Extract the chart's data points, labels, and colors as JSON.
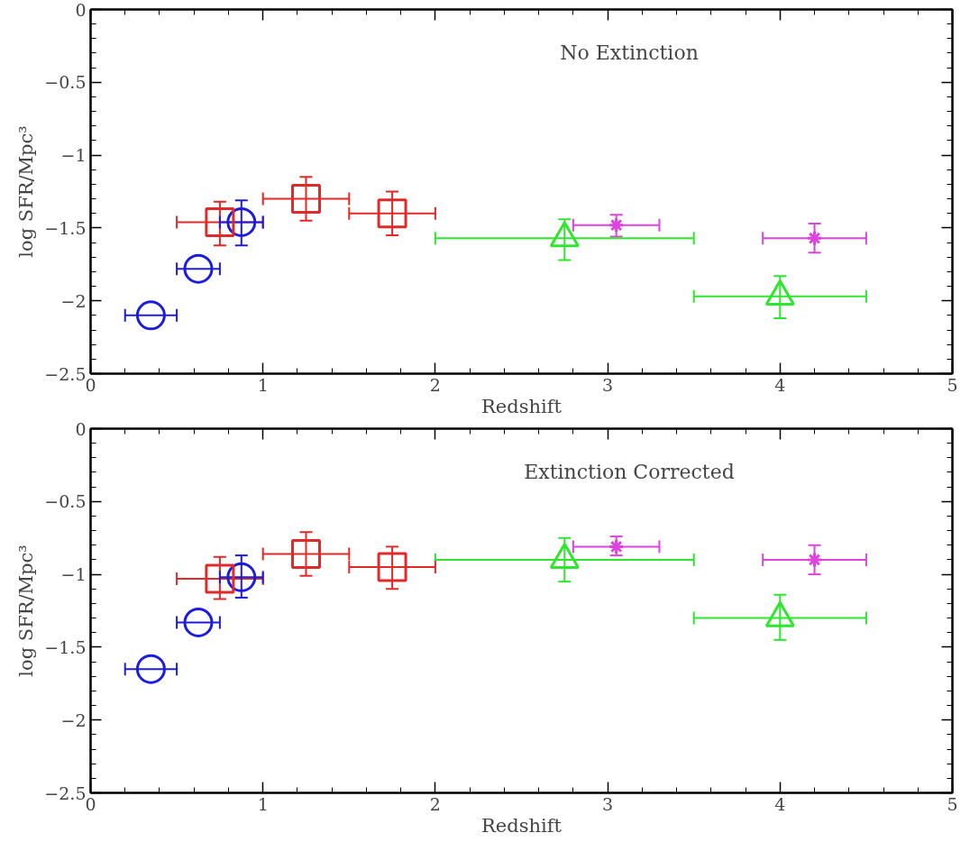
{
  "chart_data": [
    {
      "type": "scatter",
      "title": "No Extinction",
      "xlabel": "Redshift",
      "ylabel": "log SFR/Mpc³",
      "xlim": [
        0,
        5
      ],
      "ylim": [
        -2.5,
        0
      ],
      "xticks": [
        0,
        1,
        2,
        3,
        4,
        5
      ],
      "yticks": [
        0,
        {
          "value": -0.5,
          "label": "−0.5"
        },
        {
          "value": -1,
          "label": "−1"
        },
        {
          "value": -1.5,
          "label": "−1.5"
        },
        {
          "value": -2,
          "label": "−2"
        },
        {
          "value": -2.5,
          "label": "−2.5"
        }
      ],
      "grid": false,
      "series": [
        {
          "color": "#1c1ce0",
          "marker": "circle",
          "x": [
            0.35,
            0.625,
            0.875
          ],
          "values": [
            -2.1,
            -1.78,
            -1.46
          ],
          "xerrors": [
            [
              0.2,
              0.5
            ],
            [
              0.5,
              0.75
            ],
            [
              0.75,
              1.0
            ]
          ],
          "errors": [
            null,
            null,
            [
              -1.62,
              -1.31
            ]
          ]
        },
        {
          "color": "#e02a2a",
          "marker": "square",
          "x": [
            0.75,
            1.25,
            1.75
          ],
          "values": [
            -1.46,
            -1.3,
            -1.4
          ],
          "xerrors": [
            [
              0.5,
              1.0
            ],
            [
              1.0,
              1.5
            ],
            [
              1.5,
              2.0
            ]
          ],
          "errors": [
            [
              -1.62,
              -1.32
            ],
            [
              -1.45,
              -1.15
            ],
            [
              -1.55,
              -1.25
            ]
          ]
        },
        {
          "color": "#2ee62e",
          "marker": "triangle",
          "x": [
            2.75,
            4.0
          ],
          "values": [
            -1.57,
            -1.97
          ],
          "xerrors": [
            [
              2.0,
              3.5
            ],
            [
              3.5,
              4.5
            ]
          ],
          "errors": [
            [
              -1.72,
              -1.44
            ],
            [
              -2.12,
              -1.83
            ]
          ]
        },
        {
          "color": "#dd44dd",
          "marker": "cross",
          "x": [
            3.05,
            4.2
          ],
          "values": [
            -1.48,
            -1.57
          ],
          "xerrors": [
            [
              2.8,
              3.3
            ],
            [
              3.9,
              4.5
            ]
          ],
          "errors": [
            [
              -1.56,
              -1.41
            ],
            [
              -1.67,
              -1.47
            ]
          ]
        }
      ]
    },
    {
      "type": "scatter",
      "title": "Extinction Corrected",
      "xlabel": "Redshift",
      "ylabel": "log SFR/Mpc³",
      "xlim": [
        0,
        5
      ],
      "ylim": [
        -2.5,
        0
      ],
      "xticks": [
        0,
        1,
        2,
        3,
        4,
        5
      ],
      "yticks": [
        0,
        {
          "value": -0.5,
          "label": "−0.5"
        },
        {
          "value": -1,
          "label": "−1"
        },
        {
          "value": -1.5,
          "label": "−1.5"
        },
        {
          "value": -2,
          "label": "−2"
        },
        {
          "value": -2.5,
          "label": "−2.5"
        }
      ],
      "grid": false,
      "series": [
        {
          "color": "#1c1ce0",
          "marker": "circle",
          "x": [
            0.35,
            0.625,
            0.875
          ],
          "values": [
            -1.65,
            -1.33,
            -1.02
          ],
          "xerrors": [
            [
              0.2,
              0.5
            ],
            [
              0.5,
              0.75
            ],
            [
              0.75,
              1.0
            ]
          ],
          "errors": [
            null,
            null,
            [
              -1.16,
              -0.87
            ]
          ]
        },
        {
          "color": "#e02a2a",
          "marker": "square",
          "x": [
            0.75,
            1.25,
            1.75
          ],
          "values": [
            -1.03,
            -0.86,
            -0.95
          ],
          "xerrors": [
            [
              0.5,
              1.0
            ],
            [
              1.0,
              1.5
            ],
            [
              1.5,
              2.0
            ]
          ],
          "errors": [
            [
              -1.17,
              -0.88
            ],
            [
              -1.01,
              -0.71
            ],
            [
              -1.1,
              -0.81
            ]
          ]
        },
        {
          "color": "#2ee62e",
          "marker": "triangle",
          "x": [
            2.75,
            4.0
          ],
          "values": [
            -0.9,
            -1.3
          ],
          "xerrors": [
            [
              2.0,
              3.5
            ],
            [
              3.5,
              4.5
            ]
          ],
          "errors": [
            [
              -1.05,
              -0.75
            ],
            [
              -1.45,
              -1.14
            ]
          ]
        },
        {
          "color": "#dd44dd",
          "marker": "cross",
          "x": [
            3.05,
            4.2
          ],
          "values": [
            -0.81,
            -0.9
          ],
          "xerrors": [
            [
              2.8,
              3.3
            ],
            [
              3.9,
              4.5
            ]
          ],
          "errors": [
            [
              -0.87,
              -0.74
            ],
            [
              -1.0,
              -0.8
            ]
          ]
        }
      ]
    }
  ]
}
